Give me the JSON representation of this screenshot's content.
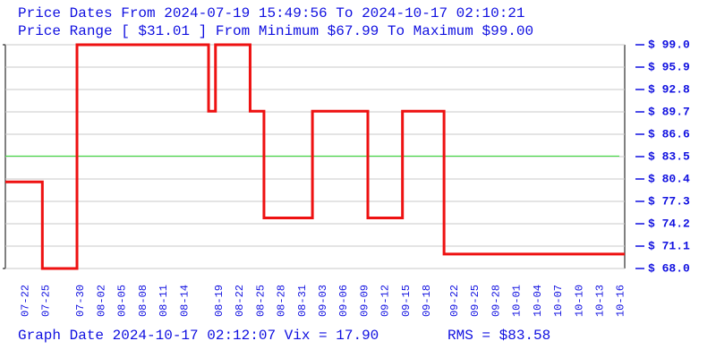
{
  "chart_data": {
    "type": "step",
    "title": "Price Dates From 2024-07-19 15:49:56 To 2024-10-17 02:10:21",
    "subtitle": "Price Range [ $31.01 ] From Minimum $67.99 To Maximum $99.00",
    "footer": "Graph Date 2024-10-17 02:12:07 Vix = 17.90",
    "rms": {
      "value": 83.58,
      "label": "RMS = $83.58",
      "color": "#33dd33"
    },
    "xlim": [
      "2024-07-19 15:49:56",
      "2024-10-17 02:10:21"
    ],
    "ylim": [
      68,
      99
    ],
    "grid": true,
    "yticks": [
      {
        "value": 99.0,
        "label": "$ 99.0"
      },
      {
        "value": 95.9,
        "label": "$ 95.9"
      },
      {
        "value": 92.8,
        "label": "$ 92.8"
      },
      {
        "value": 89.7,
        "label": "$ 89.7"
      },
      {
        "value": 86.6,
        "label": "$ 86.6"
      },
      {
        "value": 83.5,
        "label": "$ 83.5"
      },
      {
        "value": 80.4,
        "label": "$ 80.4"
      },
      {
        "value": 77.3,
        "label": "$ 77.3"
      },
      {
        "value": 74.2,
        "label": "$ 74.2"
      },
      {
        "value": 71.1,
        "label": "$ 71.1"
      },
      {
        "value": 68.0,
        "label": "$ 68.0"
      }
    ],
    "xticks": [
      {
        "value": "2024-07-22",
        "label": "07-22"
      },
      {
        "value": "2024-07-25",
        "label": "07-25"
      },
      {
        "value": "2024-07-30",
        "label": "07-30"
      },
      {
        "value": "2024-08-02",
        "label": "08-02"
      },
      {
        "value": "2024-08-05",
        "label": "08-05"
      },
      {
        "value": "2024-08-08",
        "label": "08-08"
      },
      {
        "value": "2024-08-11",
        "label": "08-11"
      },
      {
        "value": "2024-08-14",
        "label": "08-14"
      },
      {
        "value": "2024-08-19",
        "label": "08-19"
      },
      {
        "value": "2024-08-22",
        "label": "08-22"
      },
      {
        "value": "2024-08-25",
        "label": "08-25"
      },
      {
        "value": "2024-08-28",
        "label": "08-28"
      },
      {
        "value": "2024-08-31",
        "label": "08-31"
      },
      {
        "value": "2024-09-03",
        "label": "09-03"
      },
      {
        "value": "2024-09-06",
        "label": "09-06"
      },
      {
        "value": "2024-09-09",
        "label": "09-09"
      },
      {
        "value": "2024-09-12",
        "label": "09-12"
      },
      {
        "value": "2024-09-15",
        "label": "09-15"
      },
      {
        "value": "2024-09-18",
        "label": "09-18"
      },
      {
        "value": "2024-09-22",
        "label": "09-22"
      },
      {
        "value": "2024-09-25",
        "label": "09-25"
      },
      {
        "value": "2024-09-28",
        "label": "09-28"
      },
      {
        "value": "2024-10-01",
        "label": "10-01"
      },
      {
        "value": "2024-10-04",
        "label": "10-04"
      },
      {
        "value": "2024-10-07",
        "label": "10-07"
      },
      {
        "value": "2024-10-10",
        "label": "10-10"
      },
      {
        "value": "2024-10-13",
        "label": "10-13"
      },
      {
        "value": "2024-10-16",
        "label": "10-16"
      }
    ],
    "series": [
      {
        "color": "#ee1111",
        "x": [
          "2024-07-19 15:49:56",
          "2024-07-25",
          "2024-07-30",
          "2024-08-18",
          "2024-08-19",
          "2024-08-24",
          "2024-08-26",
          "2024-09-02",
          "2024-09-10",
          "2024-09-15",
          "2024-09-21",
          "2024-10-17 02:10:21"
        ],
        "values": [
          80.0,
          68.0,
          99.0,
          89.8,
          99.0,
          89.8,
          75.0,
          89.8,
          75.0,
          89.8,
          70.0,
          70.0
        ]
      }
    ]
  }
}
